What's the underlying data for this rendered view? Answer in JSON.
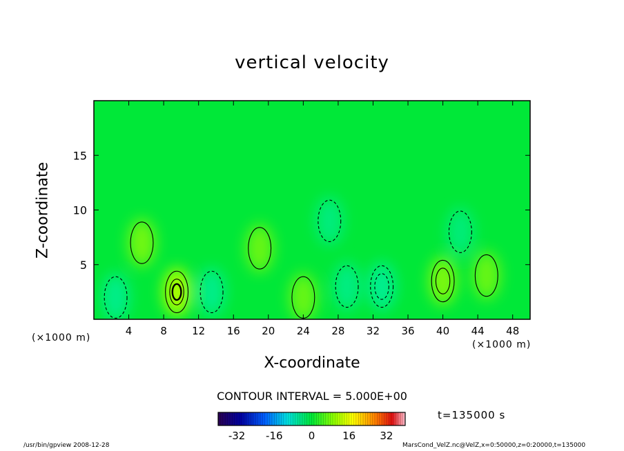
{
  "chart_data": {
    "type": "heatmap",
    "title": "vertical velocity",
    "xlabel": "X-coordinate",
    "ylabel": "Z-coordinate",
    "x_unit_left": "(×1000 m)",
    "x_unit_right": "(×1000 m)",
    "xlim": [
      0,
      50
    ],
    "ylim": [
      0,
      20
    ],
    "x_ticks": [
      "4",
      "8",
      "12",
      "16",
      "20",
      "24",
      "28",
      "32",
      "36",
      "40",
      "44",
      "48"
    ],
    "x_tick_values": [
      4,
      8,
      12,
      16,
      20,
      24,
      28,
      32,
      36,
      40,
      44,
      48
    ],
    "y_ticks": [
      "5",
      "10",
      "15"
    ],
    "y_tick_values": [
      5,
      10,
      15
    ],
    "contour_interval_text": "CONTOUR INTERVAL = 5.000E+00",
    "colorbar": {
      "range": [
        -40,
        40
      ],
      "ticks": [
        "-32",
        "-16",
        "0",
        "16",
        "32"
      ],
      "tick_values": [
        -32,
        -16,
        0,
        16,
        32
      ]
    },
    "time_text": "t=135000 s",
    "features": [
      {
        "x": 9.5,
        "z": 2.5,
        "value": 20
      },
      {
        "x": 13.5,
        "z": 2.5,
        "value": -8
      },
      {
        "x": 5.5,
        "z": 7.0,
        "value": 8
      },
      {
        "x": 2.5,
        "z": 2.0,
        "value": -8
      },
      {
        "x": 19.0,
        "z": 6.5,
        "value": 6
      },
      {
        "x": 24.0,
        "z": 2.0,
        "value": 6
      },
      {
        "x": 29.0,
        "z": 3.0,
        "value": -6
      },
      {
        "x": 33.0,
        "z": 3.0,
        "value": -10
      },
      {
        "x": 40.0,
        "z": 3.5,
        "value": 10
      },
      {
        "x": 45.0,
        "z": 4.0,
        "value": 6
      },
      {
        "x": 27.0,
        "z": 9.0,
        "value": -4
      },
      {
        "x": 42.0,
        "z": 8.0,
        "value": -3
      }
    ]
  },
  "footer": {
    "left": "/usr/bin/gpview  2008-12-28",
    "right": "MarsCond_VelZ.nc@VelZ,x=0:50000,z=0:20000,t=135000"
  },
  "colors": {
    "background": "#00e838",
    "positive": "#a8ff00",
    "negative": "#00f0b0",
    "contour": "#000000"
  }
}
